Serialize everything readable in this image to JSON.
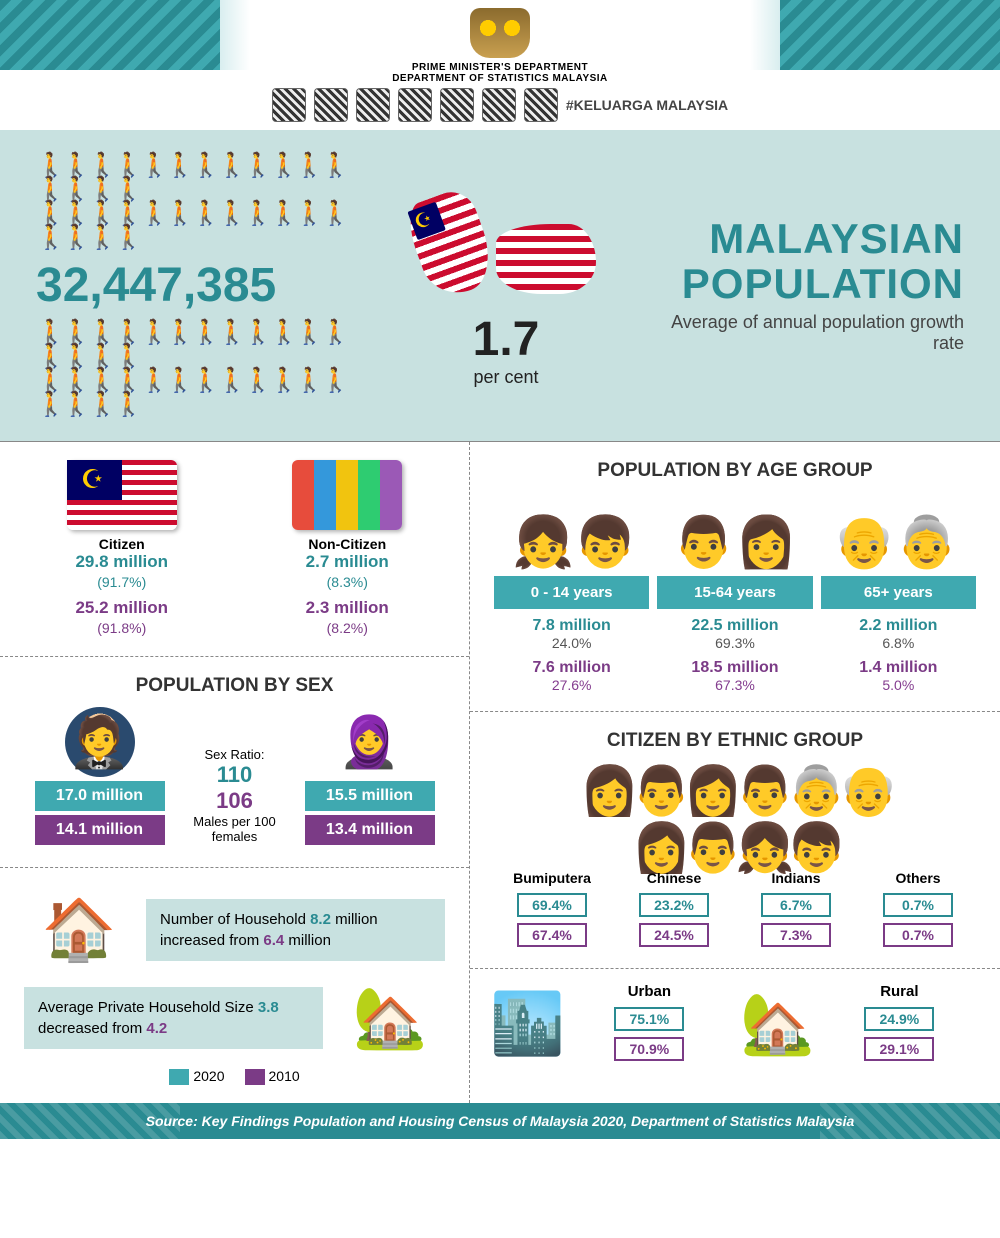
{
  "colors": {
    "teal": "#2a8b92",
    "teal_light": "#3fa9b0",
    "teal_pale": "#c8e1e0",
    "purple": "#7b3b86"
  },
  "header": {
    "dept_line1": "PRIME MINISTER'S DEPARTMENT",
    "dept_line2": "DEPARTMENT OF STATISTICS MALAYSIA",
    "hashtag": "#KELUARGA MALAYSIA"
  },
  "hero": {
    "population": "32,447,385",
    "growth_rate": "1.7",
    "growth_label": "per cent",
    "title1": "MALAYSIAN",
    "title2": "POPULATION",
    "subtitle": "Average of annual population growth rate"
  },
  "citizen": {
    "c_label": "Citizen",
    "nc_label": "Non-Citizen",
    "c_2020": "29.8 million",
    "c_2020_pct": "(91.7%)",
    "c_2010": "25.2 million",
    "c_2010_pct": "(91.8%)",
    "nc_2020": "2.7 million",
    "nc_2020_pct": "(8.3%)",
    "nc_2010": "2.3 million",
    "nc_2010_pct": "(8.2%)"
  },
  "sex": {
    "title": "POPULATION BY SEX",
    "m_2020": "17.0 million",
    "m_2010": "14.1 million",
    "f_2020": "15.5 million",
    "f_2010": "13.4 million",
    "ratio_label": "Sex Ratio:",
    "ratio_2020": "110",
    "ratio_2010": "106",
    "ratio_note": "Males per 100 females"
  },
  "household": {
    "line1a": "Number of Household ",
    "line1b": "8.2",
    "line1c": " million increased from ",
    "line1d": "6.4",
    "line1e": " million",
    "line2a": "Average Private Household Size ",
    "line2b": "3.8",
    "line2c": " decreased from ",
    "line2d": "4.2"
  },
  "legend": {
    "y2020": "2020",
    "y2010": "2010"
  },
  "age": {
    "title": "POPULATION BY AGE GROUP",
    "g1": "0 - 14 years",
    "g2": "15-64 years",
    "g3": "65+ years",
    "v1_20": "7.8 million",
    "p1_20": "24.0%",
    "v1_10": "7.6 million",
    "p1_10": "27.6%",
    "v2_20": "22.5 million",
    "p2_20": "69.3%",
    "v2_10": "18.5 million",
    "p2_10": "67.3%",
    "v3_20": "2.2 million",
    "p3_20": "6.8%",
    "v3_10": "1.4 million",
    "p3_10": "5.0%"
  },
  "ethnic": {
    "title": "CITIZEN BY ETHNIC GROUP",
    "n1": "Bumiputera",
    "n2": "Chinese",
    "n3": "Indians",
    "n4": "Others",
    "v1_20": "69.4%",
    "v1_10": "67.4%",
    "v2_20": "23.2%",
    "v2_10": "24.5%",
    "v3_20": "6.7%",
    "v3_10": "7.3%",
    "v4_20": "0.7%",
    "v4_10": "0.7%"
  },
  "urban": {
    "u_label": "Urban",
    "r_label": "Rural",
    "u_2020": "75.1%",
    "u_2010": "70.9%",
    "r_2020": "24.9%",
    "r_2010": "29.1%"
  },
  "footer": "Source: Key Findings Population and Housing Census of Malaysia 2020, Department of Statistics Malaysia"
}
